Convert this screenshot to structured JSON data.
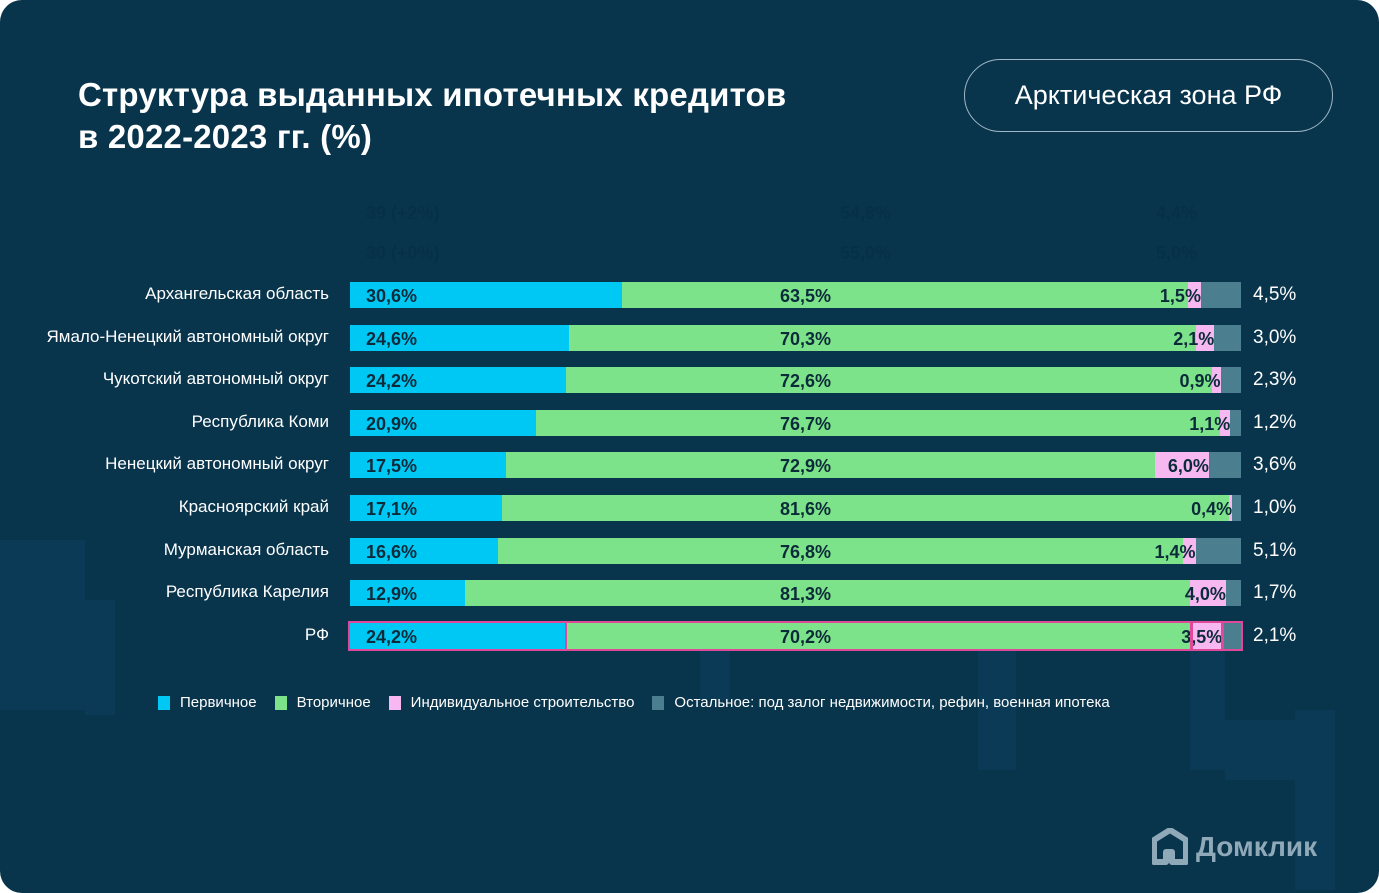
{
  "header": {
    "title_line1": "Структура выданных ипотечных кредитов",
    "title_line2": "в 2022-2023 гг. (%)",
    "region_badge": "Арктическая зона РФ"
  },
  "ghost_text": [
    "39 (+2%)",
    "54,8%",
    "4,4%",
    "30 (+0%)",
    "55,0%",
    "5,0%"
  ],
  "colors": {
    "primary": "#00c8f5",
    "secondary": "#7de38a",
    "individual": "#f7b8f2",
    "other": "#4b7f8f",
    "highlight": "#e0499a",
    "background": "#08344c"
  },
  "chart_data": {
    "type": "bar",
    "orientation": "horizontal",
    "stacked": true,
    "title": "Структура выданных ипотечных кредитов в 2022-2023 гг. (%)",
    "categories": [
      "Архангельская область",
      "Ямало-Ненецкий автономный округ",
      "Чукотский автономный округ",
      "Республика Коми",
      "Ненецкий автономный округ",
      "Красноярский край",
      "Мурманская область",
      "Республика Карелия",
      "РФ"
    ],
    "series": [
      {
        "name": "Первичное",
        "values": [
          30.6,
          24.6,
          24.2,
          20.9,
          17.5,
          17.1,
          16.6,
          12.9,
          24.2
        ],
        "labels": [
          "30,6%",
          "24,6%",
          "24,2%",
          "20,9%",
          "17,5%",
          "17,1%",
          "16,6%",
          "12,9%",
          "24,2%"
        ]
      },
      {
        "name": "Вторичное",
        "values": [
          63.5,
          70.3,
          72.6,
          76.7,
          72.9,
          81.6,
          76.8,
          81.3,
          70.2
        ],
        "labels": [
          "63,5%",
          "70,3%",
          "72,6%",
          "76,7%",
          "72,9%",
          "81,6%",
          "76,8%",
          "81,3%",
          "70,2%"
        ]
      },
      {
        "name": "Индивидуальное строительство",
        "values": [
          1.5,
          2.1,
          0.9,
          1.1,
          6.0,
          0.4,
          1.4,
          4.0,
          3.5
        ],
        "labels": [
          "1,5%",
          "2,1%",
          "0,9%",
          "1,1%",
          "6,0%",
          "0,4%",
          "1,4%",
          "4,0%",
          "3,5%"
        ]
      },
      {
        "name": "Остальное: под залог недвижимости, рефин, военная ипотека",
        "values": [
          4.5,
          3.0,
          2.3,
          1.2,
          3.6,
          1.0,
          5.1,
          1.7,
          2.1
        ],
        "labels": [
          "4,5%",
          "3,0%",
          "2,3%",
          "1,2%",
          "3,6%",
          "1,0%",
          "5,1%",
          "1,7%",
          "2,1%"
        ]
      }
    ],
    "highlighted_category": "РФ",
    "xlim": [
      0,
      100
    ],
    "legend_position": "bottom",
    "grid": false
  },
  "legend": [
    {
      "label": "Первичное"
    },
    {
      "label": "Вторичное"
    },
    {
      "label": "Индивидуальное строительство"
    },
    {
      "label": "Остальное: под залог недвижимости, рефин, военная ипотека"
    }
  ],
  "logo": {
    "text": "Домклик"
  }
}
